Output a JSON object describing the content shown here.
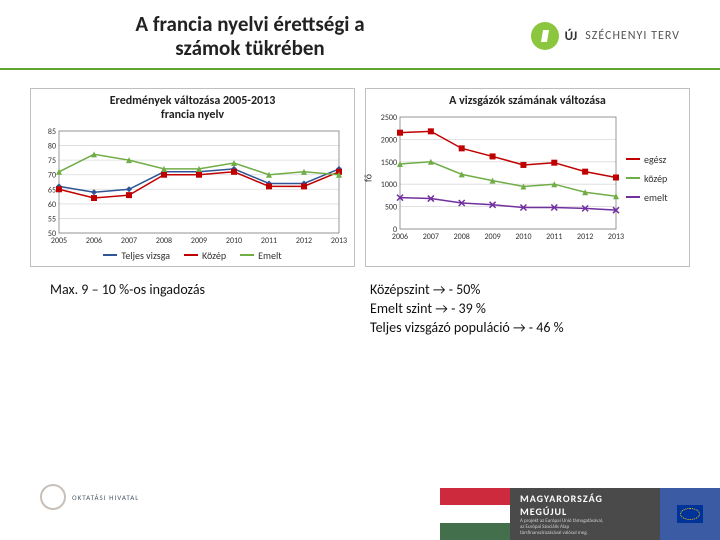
{
  "header": {
    "title_line1": "A francia nyelvi érettségi a",
    "title_line2": "számok tükrében",
    "title_fontsize": 21,
    "logo_uj": "ÚJ",
    "logo_text": "SZÉCHENYI TERV",
    "logo_dot_color": "#8cc63f",
    "rule_color": "#5fa52f"
  },
  "chart_left": {
    "type": "line",
    "title_line1": "Eredmények változása 2005-2013",
    "title_line2": "francia nyelv",
    "title_fontsize": 12,
    "x_labels": [
      "2005",
      "2006",
      "2007",
      "2008",
      "2009",
      "2010",
      "2011",
      "2012",
      "2013"
    ],
    "ymin": 50,
    "ymax": 85,
    "ytick_step": 5,
    "axis_fontsize": 8,
    "grid_color": "#d9d9d9",
    "background_color": "#ffffff",
    "plot_border_color": "#808080",
    "line_width": 1.5,
    "marker_size": 3,
    "series": [
      {
        "name": "Teljes vizsga",
        "color": "#2f5597",
        "marker": "diamond",
        "values": [
          66,
          64,
          65,
          71,
          71,
          72,
          67,
          67,
          72
        ]
      },
      {
        "name": "Közép",
        "color": "#c00000",
        "marker": "square",
        "values": [
          65,
          62,
          63,
          70,
          70,
          71,
          66,
          66,
          71
        ]
      },
      {
        "name": "Emelt",
        "color": "#70ad47",
        "marker": "triangle",
        "values": [
          71,
          77,
          75,
          72,
          72,
          74,
          70,
          71,
          70
        ]
      }
    ],
    "legend_fontsize": 10
  },
  "chart_right": {
    "type": "line",
    "title": "A vizsgázók számának változása",
    "title_fontsize": 12,
    "x_labels": [
      "2006",
      "2007",
      "2008",
      "2009",
      "2010",
      "2011",
      "2012",
      "2013"
    ],
    "ymin": 0,
    "ymax": 2500,
    "ytick_step": 500,
    "axis_fontsize": 8,
    "y_axis_label": "fő",
    "grid_color": "#d9d9d9",
    "background_color": "#ffffff",
    "plot_border_color": "#808080",
    "line_width": 1.5,
    "marker_size": 3,
    "series": [
      {
        "name": "egész",
        "color": "#c00000",
        "marker": "square",
        "values": [
          2150,
          2180,
          1800,
          1620,
          1430,
          1480,
          1280,
          1150
        ]
      },
      {
        "name": "közép",
        "color": "#70ad47",
        "marker": "triangle",
        "values": [
          1450,
          1500,
          1220,
          1080,
          950,
          1000,
          820,
          730
        ]
      },
      {
        "name": "emelt",
        "color": "#7030a0",
        "marker": "x",
        "values": [
          700,
          680,
          580,
          540,
          480,
          480,
          460,
          420
        ]
      }
    ],
    "legend_position": "right",
    "legend_fontsize": 10
  },
  "notes": {
    "left": "Max. 9 – 10 %-os ingadozás",
    "right_lines": [
      "Középszint → - 50%",
      "Emelt szint → - 39 %",
      "Teljes vizsgázó populáció →  - 46 %"
    ],
    "fontsize": 14
  },
  "footer": {
    "oh_label": "OKTATÁSI HIVATAL",
    "flag_colors": [
      "#cd2a3e",
      "#ffffff",
      "#436f4d"
    ],
    "mm_line1": "MAGYARORSZÁG",
    "mm_line2": "MEGÚJUL",
    "mm_sub": "A projekt az Európai Unió támogatásával,\naz Európai Szociális Alap\ntársfinanszírozásával valósul meg.",
    "mm_bg": "#4a4a4a",
    "eu_bg": "#3b5ba5"
  }
}
